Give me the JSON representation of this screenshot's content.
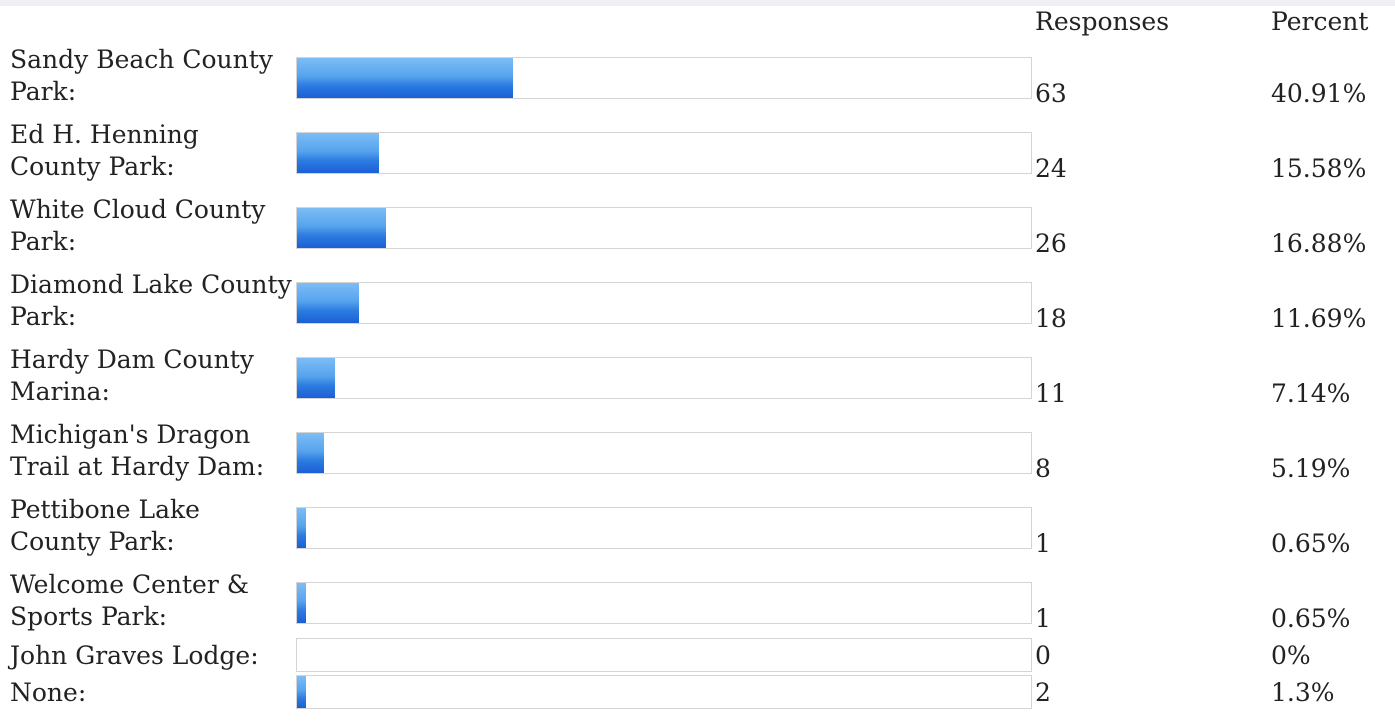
{
  "header": {
    "responses_label": "Responses",
    "percent_label": "Percent"
  },
  "colors": {
    "bar_top": "#7cbdf5",
    "bar_bottom": "#1c5fd6",
    "track_border": "#d4d4d4"
  },
  "chart_data": {
    "type": "bar",
    "orientation": "horizontal",
    "max_value": 154,
    "categories": [
      "Sandy Beach County Park:",
      "Ed H. Henning County Park:",
      "White Cloud County Park:",
      "Diamond Lake County Park:",
      "Hardy Dam County Marina:",
      "Michigan's Dragon Trail at Hardy Dam:",
      "Pettibone Lake County Park:",
      "Welcome Center & Sports Park:",
      "John Graves Lodge:",
      "None:"
    ],
    "values": [
      63,
      24,
      26,
      18,
      11,
      8,
      1,
      1,
      0,
      2
    ],
    "percents": [
      "40.91%",
      "15.58%",
      "16.88%",
      "11.69%",
      "7.14%",
      "5.19%",
      "0.65%",
      "0.65%",
      "0%",
      "1.3%"
    ],
    "percent_values": [
      40.91,
      15.58,
      16.88,
      11.69,
      7.14,
      5.19,
      0.65,
      0.65,
      0,
      1.3
    ]
  }
}
